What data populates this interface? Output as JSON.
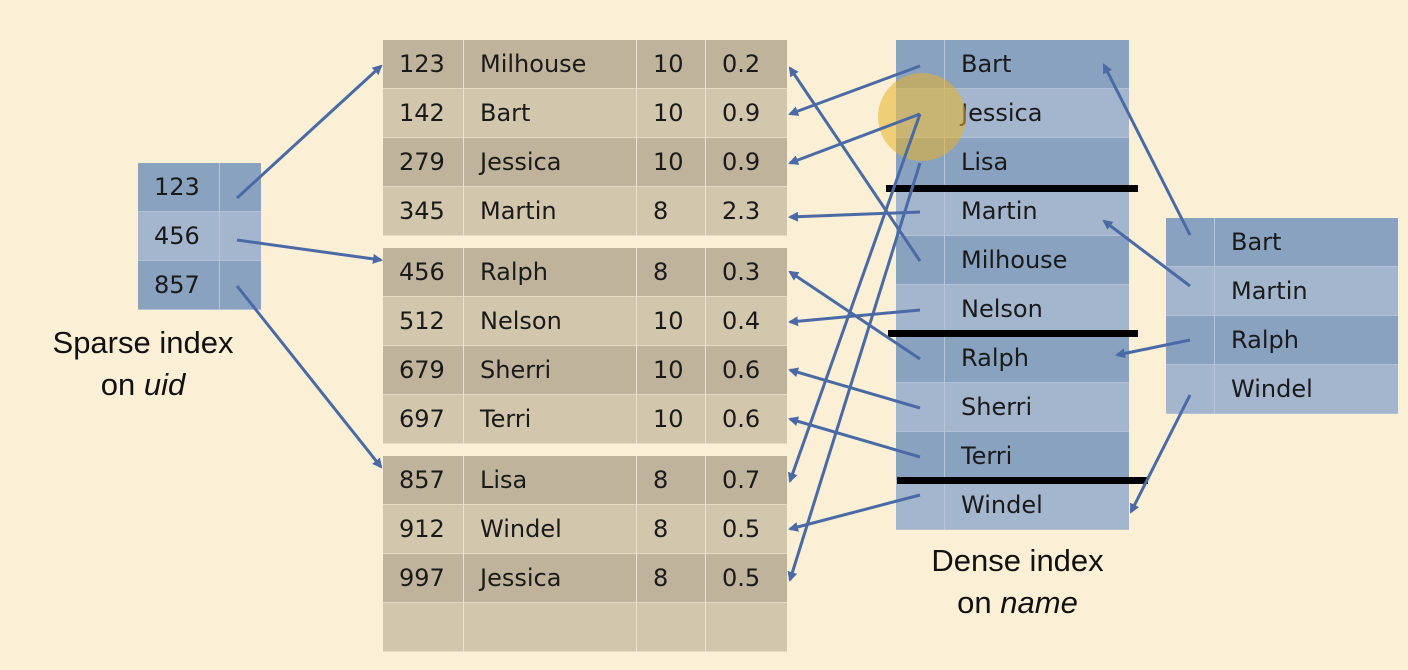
{
  "sparse_index": {
    "keys": [
      "123",
      "456",
      "857"
    ],
    "caption_line1": "Sparse index",
    "caption_prefix": "on ",
    "caption_field": "uid"
  },
  "data_blocks": [
    [
      [
        "123",
        "Milhouse",
        "10",
        "0.2"
      ],
      [
        "142",
        "Bart",
        "10",
        "0.9"
      ],
      [
        "279",
        "Jessica",
        "10",
        "0.9"
      ],
      [
        "345",
        "Martin",
        "8",
        "2.3"
      ]
    ],
    [
      [
        "456",
        "Ralph",
        "8",
        "0.3"
      ],
      [
        "512",
        "Nelson",
        "10",
        "0.4"
      ],
      [
        "679",
        "Sherri",
        "10",
        "0.6"
      ],
      [
        "697",
        "Terri",
        "10",
        "0.6"
      ]
    ],
    [
      [
        "857",
        "Lisa",
        "8",
        "0.7"
      ],
      [
        "912",
        "Windel",
        "8",
        "0.5"
      ],
      [
        "997",
        "Jessica",
        "8",
        "0.5"
      ],
      [
        "",
        "",
        "",
        ""
      ]
    ]
  ],
  "dense_index": {
    "names": [
      "Bart",
      "Jessica",
      "Lisa",
      "Martin",
      "Milhouse",
      "Nelson",
      "Ralph",
      "Sherri",
      "Terri",
      "Windel"
    ],
    "caption_line1": "Dense index",
    "caption_prefix": "on ",
    "caption_field": "name"
  },
  "second_level_index": {
    "names": [
      "Bart",
      "Martin",
      "Ralph",
      "Windel"
    ]
  },
  "colors": {
    "background": "#fbefd6",
    "arrow": "#4a6aa6",
    "highlight": "#e8b228"
  }
}
